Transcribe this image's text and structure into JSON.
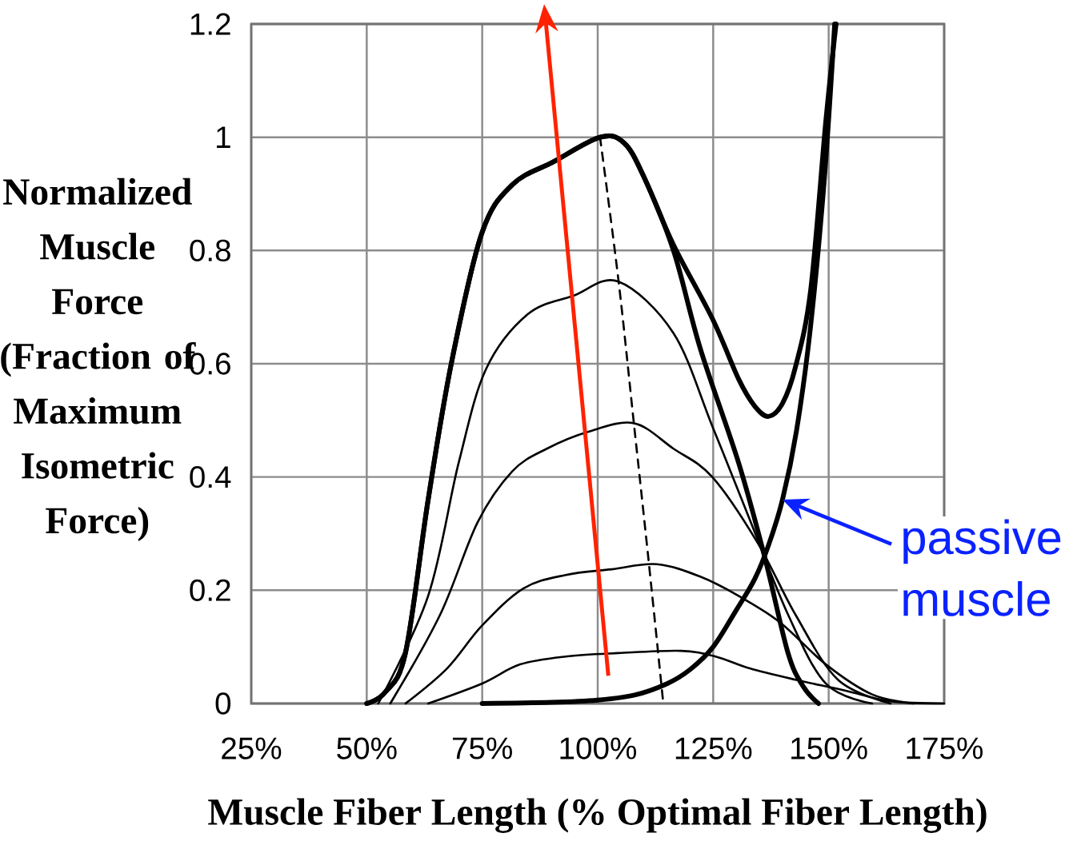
{
  "chart_data": {
    "type": "line",
    "xlabel": "Muscle Fiber Length (% Optimal Fiber Length)",
    "ylabel": "Normalized Muscle Force (Fraction of Maximum Isometric Force)",
    "xlim": [
      25,
      175
    ],
    "ylim": [
      0,
      1.2
    ],
    "xticks": [
      {
        "value": 25,
        "label": "25%"
      },
      {
        "value": 50,
        "label": "50%"
      },
      {
        "value": 75,
        "label": "75%"
      },
      {
        "value": 100,
        "label": "100%"
      },
      {
        "value": 125,
        "label": "125%"
      },
      {
        "value": 150,
        "label": "150%"
      },
      {
        "value": 175,
        "label": "175%"
      }
    ],
    "yticks": [
      0,
      0.2,
      0.4,
      0.6,
      0.8,
      1,
      1.2
    ],
    "grid": true,
    "legend": false,
    "series": [
      {
        "color": "#000000",
        "x": [
          50,
          54,
          58.4,
          63.3,
          68.3,
          74.9,
          81.5,
          90.5,
          100.5,
          105.7,
          110,
          116.4,
          124.8,
          130.5,
          134,
          137,
          140,
          142.8,
          146.1,
          149.4,
          151.6
        ],
        "values": [
          0,
          0.02,
          0.09,
          0.36,
          0.6,
          0.83,
          0.916,
          0.957,
          1.0,
          0.99,
          0.93,
          0.81,
          0.68,
          0.573,
          0.525,
          0.507,
          0.53,
          0.594,
          0.73,
          1.03,
          1.2
        ]
      },
      {
        "color": "#000000",
        "x": [
          50,
          54,
          58.4,
          63.3,
          68.3,
          74.9,
          81.5,
          90.5,
          100.5,
          105.7,
          110,
          116.4,
          122.2,
          130.5,
          136.2,
          141.2,
          144.5,
          147.8
        ],
        "values": [
          0,
          0.02,
          0.09,
          0.36,
          0.6,
          0.83,
          0.916,
          0.957,
          1.0,
          0.99,
          0.93,
          0.8,
          0.627,
          0.425,
          0.257,
          0.089,
          0.03,
          0
        ]
      },
      {
        "color": "#000000",
        "x": [
          75,
          90,
          100,
          108,
          115,
          120,
          125,
          130,
          134,
          137,
          140,
          143,
          146,
          149,
          151.3
        ],
        "values": [
          0,
          0.002,
          0.006,
          0.015,
          0.035,
          0.06,
          0.1,
          0.165,
          0.22,
          0.28,
          0.36,
          0.48,
          0.66,
          0.92,
          1.2
        ]
      },
      {
        "color": "#000000",
        "x": [
          52.5,
          63.3,
          69.9,
          75.8,
          84.8,
          94.7,
          104.5,
          116.4,
          124.8,
          132.9,
          141.2,
          149.4,
          159.4
        ],
        "values": [
          0,
          0.19,
          0.425,
          0.59,
          0.687,
          0.72,
          0.745,
          0.654,
          0.49,
          0.325,
          0.157,
          0.035,
          0
        ]
      },
      {
        "color": "#000000",
        "x": [
          55.1,
          65.9,
          74,
          81.5,
          89,
          98,
          107.8,
          116.4,
          124.8,
          134.6,
          142.8,
          152,
          163.4
        ],
        "values": [
          0,
          0.157,
          0.32,
          0.41,
          0.45,
          0.48,
          0.495,
          0.45,
          0.4,
          0.284,
          0.157,
          0.042,
          0
        ]
      },
      {
        "color": "#000000",
        "x": [
          58.4,
          67.4,
          74.9,
          83.9,
          93.1,
          103,
          112.8,
          122.2,
          130.5,
          139.5,
          149.4,
          159.4,
          168.4
        ],
        "values": [
          0,
          0.062,
          0.137,
          0.203,
          0.227,
          0.237,
          0.246,
          0.224,
          0.19,
          0.143,
          0.069,
          0.016,
          0
        ]
      },
      {
        "color": "#000000",
        "x": [
          63.3,
          74.9,
          83.2,
          93.1,
          104.5,
          118,
          125.5,
          132.9,
          142.8,
          153.5,
          163.4,
          175
        ],
        "values": [
          0,
          0.035,
          0.069,
          0.083,
          0.089,
          0.093,
          0.083,
          0.062,
          0.042,
          0.023,
          0.004,
          0
        ]
      },
      {
        "color": "#000000",
        "line_style": "dashed",
        "x": [
          100.5,
          104.5,
          107.8,
          111.1,
          114.2
        ],
        "values": [
          1.0,
          0.747,
          0.497,
          0.246,
          0
        ]
      }
    ],
    "annotations": [
      {
        "text": "passive muscle",
        "x": 140,
        "y": 0.36
      }
    ]
  }
}
